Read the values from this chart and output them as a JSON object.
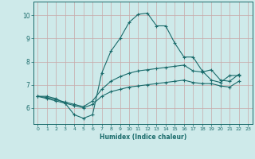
{
  "xlabel": "Humidex (Indice chaleur)",
  "bg_color": "#ceeaea",
  "grid_color": "#c8a8a8",
  "line_color": "#1a6b6b",
  "xlim": [
    -0.5,
    23.5
  ],
  "ylim": [
    5.3,
    10.6
  ],
  "yticks": [
    6,
    7,
    8,
    9,
    10
  ],
  "xticks": [
    0,
    1,
    2,
    3,
    4,
    5,
    6,
    7,
    8,
    9,
    10,
    11,
    12,
    13,
    14,
    15,
    16,
    17,
    18,
    19,
    20,
    21,
    22,
    23
  ],
  "lines": [
    {
      "x": [
        0,
        1,
        2,
        3,
        4,
        5,
        6,
        7,
        8,
        9,
        10,
        11,
        12,
        13,
        14,
        15,
        16,
        17,
        18,
        19,
        20,
        21,
        22
      ],
      "y": [
        6.5,
        6.5,
        6.4,
        6.2,
        5.7,
        5.55,
        5.7,
        7.5,
        8.45,
        9.0,
        9.7,
        10.05,
        10.1,
        9.55,
        9.55,
        8.8,
        8.2,
        8.2,
        7.6,
        7.2,
        7.1,
        7.4,
        7.4
      ]
    },
    {
      "x": [
        0,
        1,
        2,
        3,
        4,
        5,
        6,
        7,
        8,
        9,
        10,
        11,
        12,
        13,
        14,
        15,
        16,
        17,
        18,
        19,
        20,
        21,
        22
      ],
      "y": [
        6.5,
        6.45,
        6.35,
        6.25,
        6.15,
        6.05,
        6.3,
        6.8,
        7.15,
        7.35,
        7.5,
        7.6,
        7.65,
        7.7,
        7.75,
        7.8,
        7.85,
        7.6,
        7.55,
        7.65,
        7.2,
        7.15,
        7.45
      ]
    },
    {
      "x": [
        0,
        1,
        2,
        3,
        4,
        5,
        6,
        7,
        8,
        9,
        10,
        11,
        12,
        13,
        14,
        15,
        16,
        17,
        18,
        19,
        20,
        21,
        22
      ],
      "y": [
        6.5,
        6.4,
        6.3,
        6.2,
        6.1,
        6.0,
        6.15,
        6.5,
        6.7,
        6.8,
        6.9,
        6.95,
        7.0,
        7.05,
        7.1,
        7.15,
        7.2,
        7.1,
        7.05,
        7.05,
        6.95,
        6.9,
        7.15
      ]
    }
  ]
}
